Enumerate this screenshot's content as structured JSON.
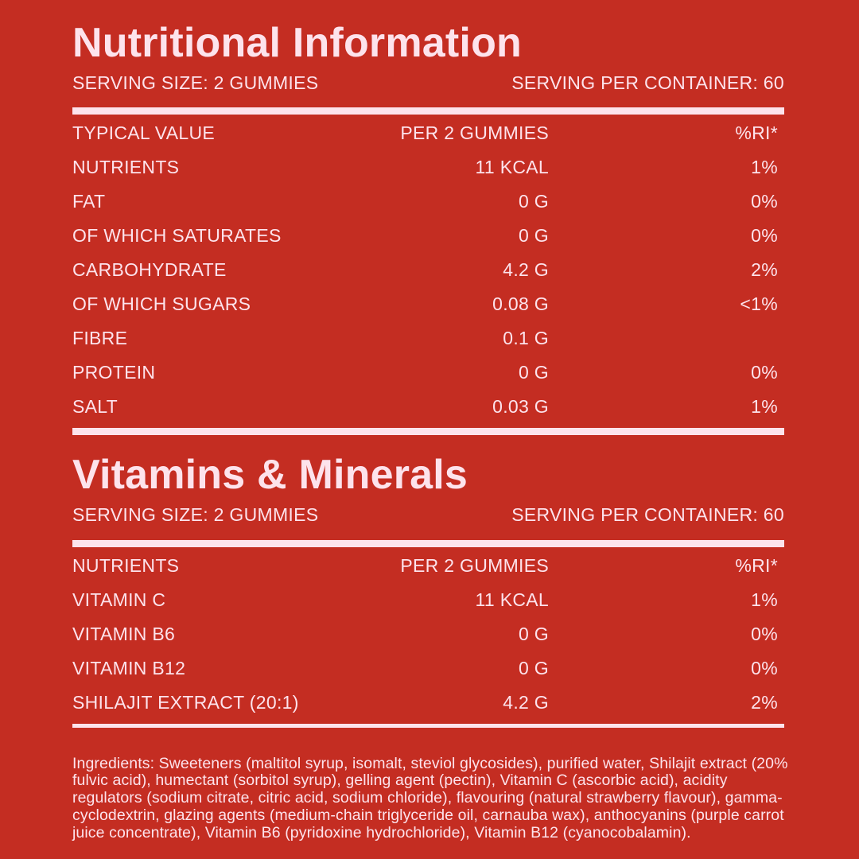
{
  "nutrition": {
    "title": "Nutritional Information",
    "serving_size": "SERVING SIZE: 2 GUMMIES",
    "servings_per_container": "SERVING PER CONTAINER: 60",
    "header": {
      "name": "TYPICAL VALUE",
      "value": "PER 2 GUMMIES",
      "ri": "%RI*"
    },
    "rows": [
      {
        "name": "NUTRIENTS",
        "value": "11 KCAL",
        "ri": "1%"
      },
      {
        "name": "FAT",
        "value": "0 G",
        "ri": "0%"
      },
      {
        "name": "OF WHICH SATURATES",
        "value": "0 G",
        "ri": "0%"
      },
      {
        "name": "CARBOHYDRATE",
        "value": "4.2 G",
        "ri": "2%"
      },
      {
        "name": "OF WHICH SUGARS",
        "value": "0.08 G",
        "ri": "<1%"
      },
      {
        "name": "FIBRE",
        "value": "0.1 G",
        "ri": ""
      },
      {
        "name": "PROTEIN",
        "value": "0 G",
        "ri": "0%"
      },
      {
        "name": "SALT",
        "value": "0.03 G",
        "ri": "1%"
      }
    ]
  },
  "vitamins": {
    "title": "Vitamins & Minerals",
    "serving_size": "SERVING SIZE: 2 GUMMIES",
    "servings_per_container": "SERVING PER CONTAINER: 60",
    "header": {
      "name": "NUTRIENTS",
      "value": "PER 2 GUMMIES",
      "ri": "%RI*"
    },
    "rows": [
      {
        "name": "VITAMIN C",
        "value": "11 KCAL",
        "ri": "1%"
      },
      {
        "name": "VITAMIN B6",
        "value": "0 G",
        "ri": "0%"
      },
      {
        "name": "VITAMIN B12",
        "value": "0 G",
        "ri": "0%"
      },
      {
        "name": "SHILAJIT EXTRACT (20:1)",
        "value": "4.2 G",
        "ri": "2%"
      }
    ]
  },
  "ingredients": "Ingredients: Sweeteners (maltitol syrup, isomalt, steviol glycosides), purified water, Shilajit extract (20% fulvic acid), humectant (sorbitol syrup), gelling agent (pectin), Vitamin C (ascorbic acid), acidity regulators (sodium citrate, citric acid, sodium chloride), flavouring (natural strawberry flavour), gamma-cyclodextrin, glazing agents (medium-chain triglyceride oil, carnauba wax), anthocyanins (purple carrot juice concentrate), Vitamin B6 (pyridoxine hydrochloride), Vitamin B12 (cyanocobalamin).",
  "colors": {
    "background": "#c42d22",
    "text": "#fde3ec"
  }
}
